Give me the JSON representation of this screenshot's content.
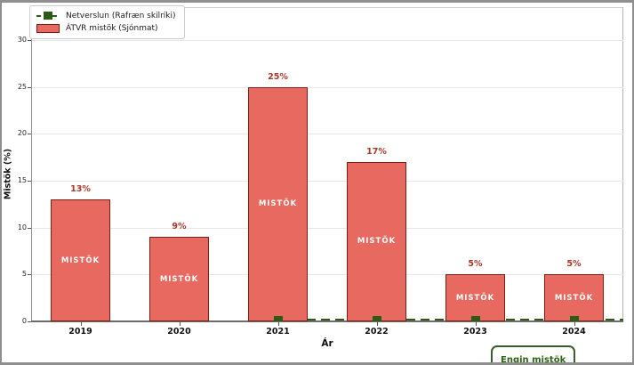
{
  "legend": {
    "items": [
      {
        "label": "Netverslun (Rafræn skilríki)",
        "color": "#2d5a15",
        "marker": "dashed-line-with-square"
      },
      {
        "label": "ÁTVR mistök (Sjónmat)",
        "color": "#e8695f",
        "edge_color": "#7a1f18",
        "marker": "bar-patch"
      }
    ]
  },
  "chart_data": {
    "type": "bar",
    "title": "",
    "xlabel": "Ár",
    "ylabel": "Mistök (%)",
    "categories": [
      "2019",
      "2020",
      "2021",
      "2022",
      "2023",
      "2024"
    ],
    "yticks": [
      0,
      5,
      10,
      15,
      20,
      25,
      30
    ],
    "ylim": [
      0,
      33.5
    ],
    "grid": "horizontal",
    "legend_position": "upper-left",
    "series": [
      {
        "name": "ÁTVR mistök (Sjónmat)",
        "type": "bar",
        "values": [
          13,
          9,
          25,
          17,
          5,
          5
        ],
        "value_labels": [
          "13%",
          "9%",
          "25%",
          "17%",
          "5%",
          "5%"
        ],
        "bar_text": "MISTÖK",
        "fill_color": "#e8695f",
        "edge_color": "#7a1f18",
        "label_color": "#a63628"
      },
      {
        "name": "Netverslun (Rafræn skilríki)",
        "type": "dashed-line-with-square-markers",
        "x": [
          "2021",
          "2022",
          "2023",
          "2024"
        ],
        "values": [
          0,
          0,
          0,
          0
        ],
        "color": "#2d5a15"
      }
    ]
  },
  "annotation": {
    "label": "Engin mistök",
    "color": "#2e6018"
  }
}
